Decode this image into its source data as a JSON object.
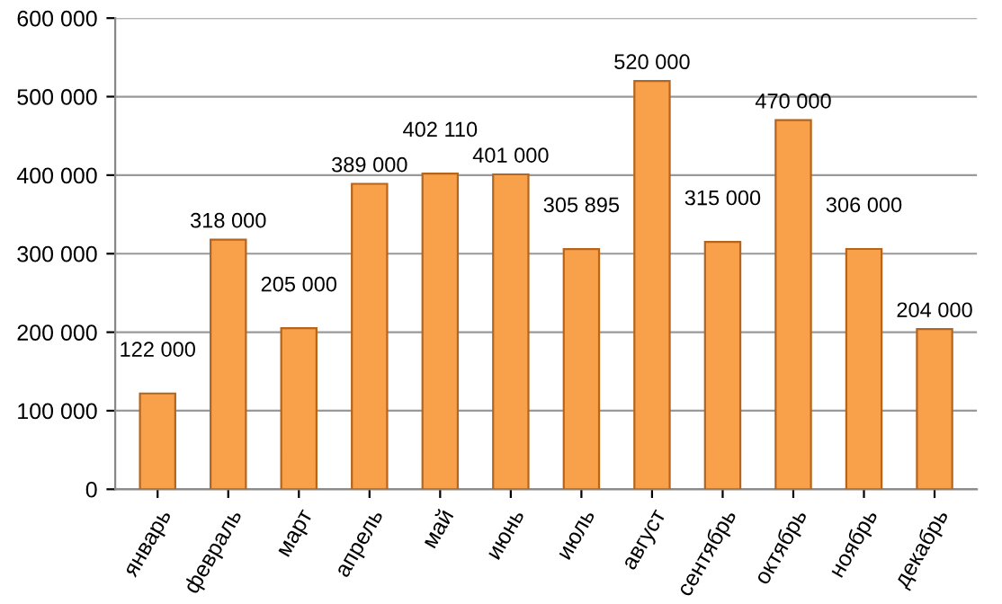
{
  "chart_data": {
    "type": "bar",
    "categories": [
      "январь",
      "февраль",
      "март",
      "апрель",
      "май",
      "июнь",
      "июль",
      "август",
      "сентябрь",
      "октябрь",
      "ноябрь",
      "декабрь"
    ],
    "values": [
      122000,
      318000,
      205000,
      389000,
      402110,
      401000,
      305895,
      520000,
      315000,
      470000,
      306000,
      204000
    ],
    "value_labels": [
      "122 000",
      "318 000",
      "205 000",
      "389 000",
      "402 110",
      "401 000",
      "305 895",
      "520 000",
      "315 000",
      "470 000",
      "306 000",
      "204 000"
    ],
    "color": "#f9a04a",
    "ylim": [
      0,
      600000
    ],
    "yticks": [
      0,
      {
        "value": 100000,
        "label": "100 000"
      },
      {
        "value": 200000,
        "label": "200 000"
      },
      {
        "value": 300000,
        "label": "300 000"
      },
      {
        "value": 400000,
        "label": "400 000"
      },
      {
        "value": 500000,
        "label": "500 000"
      },
      {
        "value": 600000,
        "label": "600 000"
      }
    ],
    "grid": "y"
  }
}
